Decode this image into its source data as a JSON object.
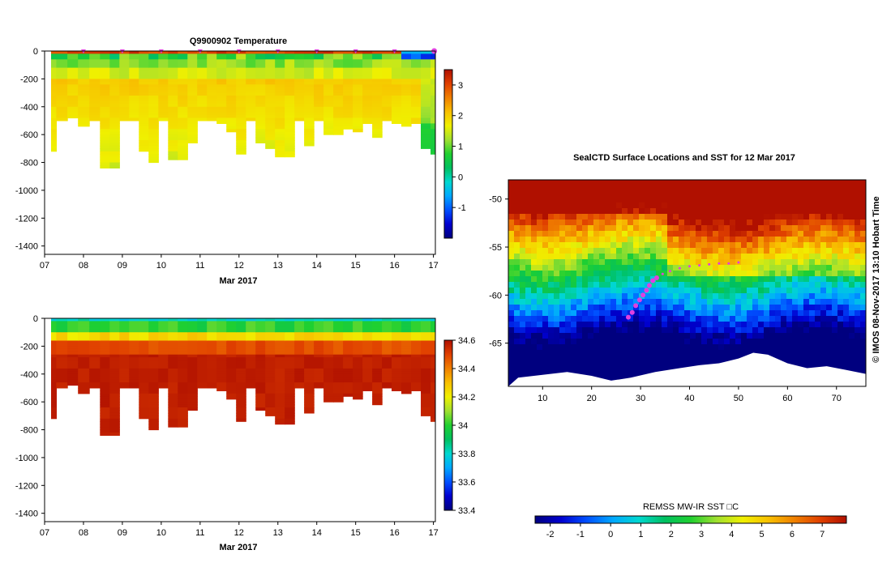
{
  "colors": {
    "ramp": [
      "#00007f",
      "#0000d0",
      "#0050ff",
      "#00a8ff",
      "#00d8d0",
      "#00c060",
      "#20d030",
      "#a0e030",
      "#f0f000",
      "#f8c000",
      "#f08000",
      "#e04000",
      "#b01000"
    ],
    "land": "#ffffff",
    "track": "#e040e0"
  },
  "chart_data": [
    {
      "type": "heatmap",
      "title": "Q9900902  Temperature",
      "xlabel": "Mar 2017",
      "ylabel": "",
      "x_ticks": [
        "07",
        "08",
        "09",
        "10",
        "11",
        "12",
        "13",
        "14",
        "15",
        "16",
        "17"
      ],
      "y_ticks": [
        "0",
        "-200",
        "-400",
        "-600",
        "-800",
        "-1000",
        "-1200",
        "-1400"
      ],
      "xlim": [
        7,
        17.05
      ],
      "ylim": [
        -1460,
        0
      ],
      "profile_times": [
        7.15,
        7.45,
        7.72,
        8.0,
        8.3,
        8.55,
        8.8,
        9.05,
        9.3,
        9.55,
        9.8,
        10.05,
        10.3,
        10.55,
        10.8,
        11.05,
        11.3,
        11.55,
        11.8,
        12.05,
        12.3,
        12.55,
        12.8,
        13.05,
        13.3,
        13.55,
        13.8,
        14.05,
        14.3,
        14.55,
        14.8,
        15.05,
        15.3,
        15.55,
        15.8,
        16.05,
        16.3,
        16.55,
        16.8,
        17.05
      ],
      "profile_max_depth": [
        720,
        500,
        480,
        530,
        500,
        830,
        830,
        490,
        490,
        710,
        790,
        490,
        770,
        770,
        660,
        490,
        500,
        510,
        580,
        730,
        490,
        650,
        690,
        760,
        760,
        490,
        680,
        490,
        600,
        600,
        560,
        570,
        520,
        610,
        490,
        510,
        540,
        510,
        700,
        730
      ],
      "colorbar": {
        "min": -2,
        "max": 3.5,
        "ticks": [
          "3",
          "2",
          "1",
          "0",
          "-1"
        ]
      }
    },
    {
      "type": "heatmap",
      "title": "",
      "xlabel": "Mar 2017",
      "ylabel": "",
      "x_ticks": [
        "07",
        "08",
        "09",
        "10",
        "11",
        "12",
        "13",
        "14",
        "15",
        "16",
        "17"
      ],
      "y_ticks": [
        "0",
        "-200",
        "-400",
        "-600",
        "-800",
        "-1000",
        "-1200",
        "-1400"
      ],
      "xlim": [
        7,
        17.05
      ],
      "ylim": [
        -1460,
        0
      ],
      "colorbar": {
        "min": 33.4,
        "max": 34.6,
        "ticks": [
          "34.6",
          "34.4",
          "34.2",
          "34",
          "33.8",
          "33.6",
          "33.4"
        ]
      }
    },
    {
      "type": "heatmap",
      "title": "SealCTD Surface Locations and SST for 12 Mar 2017",
      "x_ticks": [
        "10",
        "20",
        "30",
        "40",
        "50",
        "60",
        "70"
      ],
      "y_ticks": [
        "-50",
        "-55",
        "-60",
        "-65"
      ],
      "xlim": [
        3,
        76
      ],
      "ylim": [
        -69.5,
        -48
      ],
      "track": {
        "lon": [
          27.5,
          28.3,
          29.0,
          29.8,
          30.5,
          31.2,
          31.8,
          32.5,
          33.3,
          34.5,
          36.0,
          38.0,
          40.0,
          42.0,
          44.0,
          46.0,
          48.0,
          50.0
        ],
        "lat": [
          -62.3,
          -61.8,
          -61.1,
          -60.5,
          -60.0,
          -59.5,
          -59.0,
          -58.5,
          -58.2,
          -57.8,
          -57.5,
          -57.2,
          -57.0,
          -56.9,
          -56.8,
          -56.7,
          -56.7,
          -56.6
        ]
      },
      "colorbar": {
        "title": "REMSS MW-IR SST □C",
        "min": -2.5,
        "max": 7.8,
        "ticks": [
          "-2",
          "-1",
          "0",
          "1",
          "2",
          "3",
          "4",
          "5",
          "6",
          "7"
        ]
      },
      "credit": "© IMOS 08-Nov-2017 13:10 Hobart Time"
    }
  ]
}
